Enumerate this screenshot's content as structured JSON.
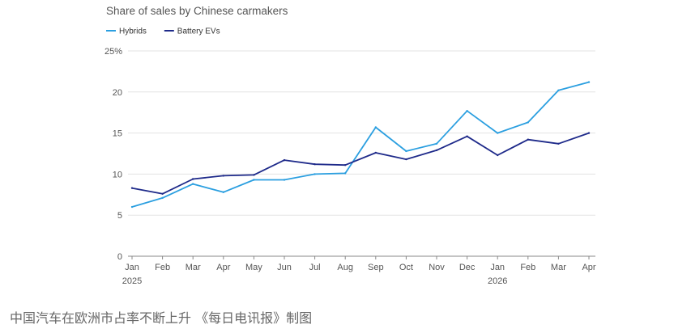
{
  "chart_data": {
    "type": "line",
    "title": "Share of sales by Chinese carmakers",
    "x": [
      "Jan",
      "Feb",
      "Mar",
      "Apr",
      "May",
      "Jun",
      "Jul",
      "Aug",
      "Sep",
      "Oct",
      "Nov",
      "Dec",
      "Jan",
      "Feb",
      "Mar",
      "Apr"
    ],
    "year_labels": [
      {
        "index": 0,
        "label": "2025"
      },
      {
        "index": 12,
        "label": "2026"
      }
    ],
    "y_ticks": [
      "0",
      "5",
      "10",
      "15",
      "20",
      "25%"
    ],
    "ylim": [
      0,
      25
    ],
    "grid": true,
    "legend_position": "top-left",
    "series": [
      {
        "name": "Hybrids",
        "color": "#2b9fe0",
        "values": [
          6.0,
          7.1,
          8.8,
          7.8,
          9.3,
          9.3,
          10.0,
          10.1,
          15.7,
          12.8,
          13.7,
          17.7,
          15.0,
          16.3,
          20.2,
          21.2
        ]
      },
      {
        "name": "Battery EVs",
        "color": "#1e2a8a",
        "values": [
          8.3,
          7.6,
          9.4,
          9.8,
          9.9,
          11.7,
          11.2,
          11.1,
          12.6,
          11.8,
          12.9,
          14.6,
          12.3,
          14.2,
          13.7,
          15.0
        ]
      }
    ]
  },
  "caption": "中国汽车在欧洲市占率不断上升 《每日电讯报》制图"
}
